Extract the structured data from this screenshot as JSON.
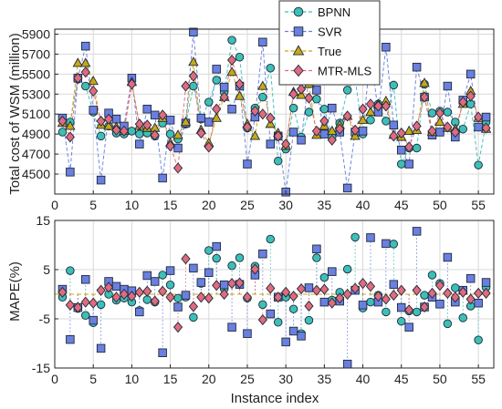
{
  "chart_data": [
    {
      "type": "line",
      "ylabel": "Total cost of WSM (million)",
      "xlim": [
        0,
        57
      ],
      "ylim": [
        4300,
        5950
      ],
      "xticks": [
        0,
        5,
        10,
        15,
        20,
        25,
        30,
        35,
        40,
        45,
        50,
        55
      ],
      "yticks": [
        4500,
        4700,
        4900,
        5100,
        5300,
        5500,
        5700,
        5900
      ],
      "grid": true,
      "legend": "top-right",
      "x": [
        1,
        2,
        3,
        4,
        5,
        6,
        7,
        8,
        9,
        10,
        11,
        12,
        13,
        14,
        15,
        16,
        17,
        18,
        19,
        20,
        21,
        22,
        23,
        24,
        25,
        26,
        27,
        28,
        29,
        30,
        31,
        32,
        33,
        34,
        35,
        36,
        37,
        38,
        39,
        40,
        41,
        42,
        43,
        44,
        45,
        46,
        47,
        48,
        49,
        50,
        51,
        52,
        53,
        54,
        55,
        56
      ],
      "series": [
        {
          "name": "BPNN",
          "values": [
            4920,
            5020,
            5450,
            5380,
            5120,
            4880,
            4980,
            4910,
            4900,
            4930,
            4900,
            4910,
            4880,
            5010,
            4900,
            4850,
            5000,
            5380,
            5050,
            5220,
            5440,
            5320,
            5840,
            5670,
            4960,
            5160,
            5270,
            5560,
            4630,
            4750,
            5160,
            4870,
            5120,
            5250,
            5150,
            4870,
            5010,
            5340,
            5450,
            4900,
            5040,
            5200,
            5030,
            5390,
            4600,
            4760,
            4760,
            5400,
            5110,
            5130,
            5120,
            5020,
            4950,
            5200,
            4590,
            5020
          ],
          "color": "#3dbfb8",
          "marker": "circle"
        },
        {
          "name": "SVR",
          "values": [
            5060,
            4520,
            5460,
            5780,
            5140,
            4440,
            5110,
            5050,
            4980,
            5460,
            4800,
            5150,
            5090,
            4460,
            5040,
            4760,
            5010,
            5920,
            5060,
            5020,
            5550,
            5370,
            5150,
            5380,
            4600,
            5070,
            5820,
            4800,
            4880,
            4320,
            4920,
            4840,
            5470,
            5340,
            4900,
            5160,
            4920,
            4360,
            4920,
            4930,
            5710,
            5120,
            5770,
            4990,
            4740,
            4600,
            5570,
            5270,
            4890,
            4920,
            5380,
            4870,
            5240,
            5500,
            4970,
            5070
          ],
          "color": "#6a7fe0",
          "marker": "square"
        },
        {
          "name": "True",
          "values": [
            5010,
            4980,
            5610,
            5610,
            5430,
            4990,
            4980,
            4970,
            4930,
            5420,
            4980,
            4960,
            4960,
            5060,
            4810,
            4890,
            5020,
            5620,
            4940,
            4810,
            5060,
            5270,
            5520,
            5280,
            5000,
            4880,
            5380,
            5000,
            4910,
            4780,
            5320,
            5290,
            5400,
            4890,
            4980,
            4930,
            4990,
            5080,
            4880,
            5040,
            5120,
            5200,
            5230,
            4890,
            4870,
            4930,
            4940,
            5410,
            4920,
            5020,
            4960,
            4950,
            5200,
            5330,
            5060,
            4950
          ],
          "color": "#c8a814",
          "marker": "triangle"
        },
        {
          "name": "MTR-MLS",
          "values": [
            5030,
            4870,
            5460,
            5520,
            5330,
            5030,
            5050,
            4940,
            4930,
            5400,
            5000,
            4990,
            4890,
            5090,
            4780,
            4560,
            5380,
            5480,
            4910,
            4770,
            5150,
            5270,
            5640,
            5400,
            4970,
            5130,
            5100,
            5060,
            4880,
            4800,
            5300,
            5350,
            5260,
            4930,
            5030,
            4840,
            4950,
            5080,
            4940,
            5150,
            5200,
            5180,
            5180,
            4880,
            4910,
            4770,
            4980,
            5270,
            4930,
            5110,
            4970,
            4920,
            5220,
            5280,
            5070,
            4960
          ],
          "color": "#e06b7e",
          "marker": "diamond"
        }
      ]
    },
    {
      "type": "scatter",
      "xlabel": "Instance index",
      "ylabel": "MAPE(%)",
      "xlim": [
        0,
        57
      ],
      "ylim": [
        -15,
        15
      ],
      "xticks": [
        0,
        5,
        10,
        15,
        20,
        25,
        30,
        35,
        40,
        45,
        50,
        55
      ],
      "yticks": [
        -15,
        -5,
        5,
        15
      ],
      "grid": true,
      "x": [
        1,
        2,
        3,
        4,
        5,
        6,
        7,
        8,
        9,
        10,
        11,
        12,
        13,
        14,
        15,
        16,
        17,
        18,
        19,
        20,
        21,
        22,
        23,
        24,
        25,
        26,
        27,
        28,
        29,
        30,
        31,
        32,
        33,
        34,
        35,
        36,
        37,
        38,
        39,
        40,
        41,
        42,
        43,
        44,
        45,
        46,
        47,
        48,
        49,
        50,
        51,
        52,
        53,
        54,
        55,
        56
      ],
      "series": [
        {
          "name": "BPNN",
          "values": [
            -0.6,
            4.8,
            -2.9,
            -4.3,
            -5.8,
            -2.1,
            0.0,
            -1.2,
            -0.8,
            -1.6,
            -3.3,
            -1.1,
            -1.6,
            3.9,
            1.9,
            -0.8,
            -0.6,
            -4.7,
            2.2,
            8.9,
            7.3,
            1.1,
            5.8,
            7.4,
            -0.8,
            5.7,
            -2.1,
            11.2,
            -5.7,
            -0.6,
            -3.0,
            -8.0,
            -5.3,
            7.4,
            3.4,
            -1.2,
            0.4,
            5.1,
            11.6,
            -2.8,
            -1.6,
            -0.2,
            -3.6,
            10.2,
            -5.5,
            -3.4,
            -3.6,
            -0.2,
            3.9,
            2.2,
            -6.0,
            1.3,
            -4.8,
            -2.4,
            -9.3,
            1.4
          ],
          "color": "#3dbfb8",
          "marker": "circle"
        },
        {
          "name": "SVR",
          "values": [
            1.0,
            -9.2,
            -2.7,
            3.0,
            -5.3,
            -11.0,
            2.6,
            1.6,
            1.0,
            0.7,
            -3.6,
            3.8,
            2.6,
            -11.9,
            4.8,
            -2.6,
            -0.2,
            5.3,
            2.4,
            4.4,
            9.7,
            1.9,
            -6.7,
            2.0,
            -8.0,
            3.9,
            8.2,
            -4.0,
            -0.6,
            -9.7,
            -7.5,
            -8.5,
            1.3,
            9.2,
            -1.6,
            4.6,
            -1.4,
            -14.2,
            0.8,
            -2.2,
            11.5,
            -1.6,
            10.3,
            2.0,
            -2.7,
            -6.7,
            12.8,
            -2.6,
            -0.6,
            -2.0,
            7.5,
            -1.6,
            0.8,
            3.2,
            -1.8,
            2.4
          ],
          "color": "#6a7fe0",
          "marker": "square"
        },
        {
          "name": "MTR-MLS",
          "values": [
            0.4,
            -2.2,
            -2.7,
            -1.6,
            -1.8,
            0.8,
            1.4,
            -0.6,
            0.0,
            -0.4,
            0.4,
            0.6,
            -1.4,
            0.6,
            -0.6,
            -6.7,
            7.2,
            -2.5,
            -0.6,
            -0.8,
            1.8,
            0.0,
            2.2,
            2.3,
            -0.6,
            5.1,
            -5.2,
            1.2,
            -0.6,
            0.4,
            -0.4,
            1.1,
            -2.4,
            0.8,
            1.0,
            -1.8,
            -0.8,
            0.0,
            1.2,
            2.2,
            1.6,
            -0.4,
            -1.0,
            -0.2,
            0.8,
            -3.2,
            0.8,
            -2.6,
            0.2,
            1.8,
            0.2,
            -0.6,
            0.4,
            -1.0,
            0.2,
            0.2
          ],
          "color": "#e06b7e",
          "marker": "diamond"
        }
      ]
    }
  ]
}
